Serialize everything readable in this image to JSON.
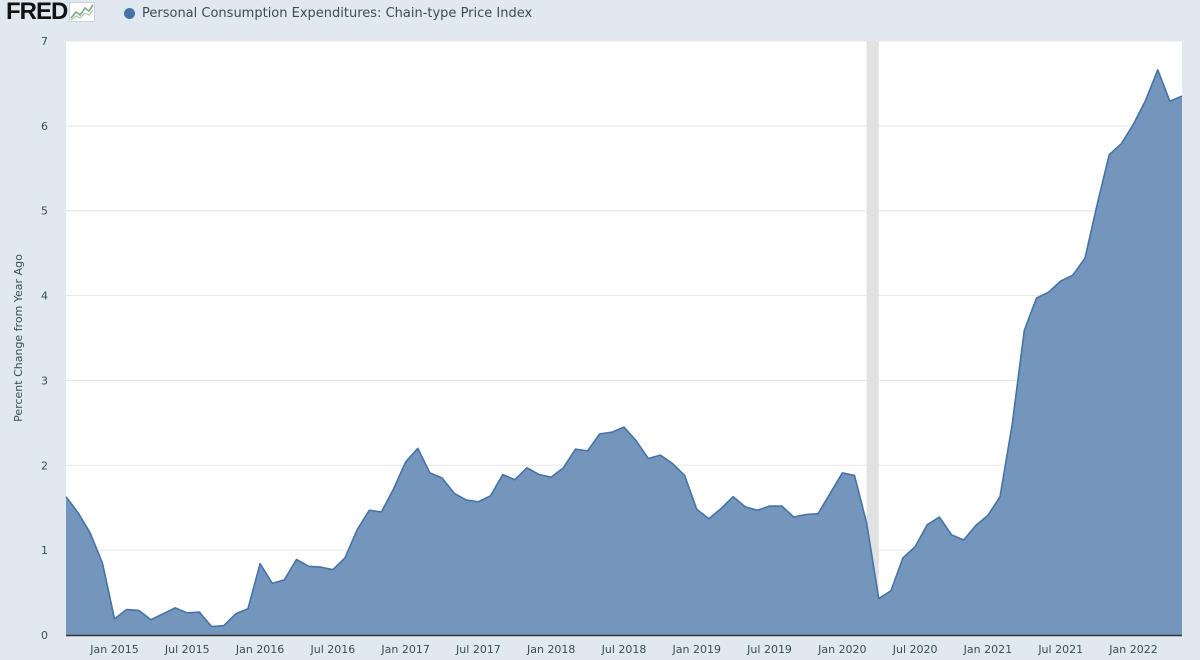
{
  "header": {
    "logo": "FRED",
    "logo_icon": "line-chart-icon"
  },
  "colors": {
    "series": "#4572a7",
    "fill": "#7496bd",
    "recession": "#e1e1e1",
    "grid": "#e6e6e6",
    "plot_bg": "#ffffff",
    "page_bg": "#e1e9f0"
  },
  "chart_data": {
    "type": "area",
    "ylabel": "Percent Change from Year Ago",
    "ylim": [
      0,
      7
    ],
    "y_ticks": [
      0,
      1,
      2,
      3,
      4,
      5,
      6,
      7
    ],
    "grid": true,
    "legend_position": "top-left",
    "x_tick_labels": [
      "Jan 2015",
      "Jul 2015",
      "Jan 2016",
      "Jul 2016",
      "Jan 2017",
      "Jul 2017",
      "Jan 2018",
      "Jul 2018",
      "Jan 2019",
      "Jul 2019",
      "Jan 2020",
      "Jul 2020",
      "Jan 2021",
      "Jul 2021",
      "Jan 2022"
    ],
    "x_tick_months": [
      0,
      6,
      12,
      18,
      24,
      30,
      36,
      42,
      48,
      54,
      60,
      66,
      72,
      78,
      84
    ],
    "x_start": "2014-09",
    "x_end": "2022-05",
    "recession": {
      "start": "2020-03",
      "end": "2020-04"
    },
    "series": [
      {
        "name": "Personal Consumption Expenditures: Chain-type Price Index",
        "x": [
          "2014-09",
          "2014-10",
          "2014-11",
          "2014-12",
          "2015-01",
          "2015-02",
          "2015-03",
          "2015-04",
          "2015-05",
          "2015-06",
          "2015-07",
          "2015-08",
          "2015-09",
          "2015-10",
          "2015-11",
          "2015-12",
          "2016-01",
          "2016-02",
          "2016-03",
          "2016-04",
          "2016-05",
          "2016-06",
          "2016-07",
          "2016-08",
          "2016-09",
          "2016-10",
          "2016-11",
          "2016-12",
          "2017-01",
          "2017-02",
          "2017-03",
          "2017-04",
          "2017-05",
          "2017-06",
          "2017-07",
          "2017-08",
          "2017-09",
          "2017-10",
          "2017-11",
          "2017-12",
          "2018-01",
          "2018-02",
          "2018-03",
          "2018-04",
          "2018-05",
          "2018-06",
          "2018-07",
          "2018-08",
          "2018-09",
          "2018-10",
          "2018-11",
          "2018-12",
          "2019-01",
          "2019-02",
          "2019-03",
          "2019-04",
          "2019-05",
          "2019-06",
          "2019-07",
          "2019-08",
          "2019-09",
          "2019-10",
          "2019-11",
          "2019-12",
          "2020-01",
          "2020-02",
          "2020-03",
          "2020-04",
          "2020-05",
          "2020-06",
          "2020-07",
          "2020-08",
          "2020-09",
          "2020-10",
          "2020-11",
          "2020-12",
          "2021-01",
          "2021-02",
          "2021-03",
          "2021-04",
          "2021-05",
          "2021-06",
          "2021-07",
          "2021-08",
          "2021-09",
          "2021-10",
          "2021-11",
          "2021-12",
          "2022-01",
          "2022-02",
          "2022-03",
          "2022-04",
          "2022-05"
        ],
        "values": [
          1.63,
          1.44,
          1.2,
          0.85,
          0.19,
          0.3,
          0.29,
          0.18,
          0.25,
          0.32,
          0.26,
          0.27,
          0.1,
          0.11,
          0.25,
          0.31,
          0.84,
          0.61,
          0.65,
          0.89,
          0.81,
          0.8,
          0.77,
          0.91,
          1.24,
          1.47,
          1.45,
          1.72,
          2.04,
          2.2,
          1.91,
          1.85,
          1.67,
          1.59,
          1.57,
          1.64,
          1.89,
          1.83,
          1.97,
          1.89,
          1.86,
          1.97,
          2.19,
          2.17,
          2.37,
          2.39,
          2.45,
          2.29,
          2.08,
          2.12,
          2.02,
          1.88,
          1.48,
          1.37,
          1.49,
          1.63,
          1.51,
          1.47,
          1.52,
          1.52,
          1.39,
          1.42,
          1.43,
          1.67,
          1.91,
          1.88,
          1.32,
          0.43,
          0.52,
          0.91,
          1.04,
          1.3,
          1.39,
          1.18,
          1.12,
          1.29,
          1.41,
          1.63,
          2.48,
          3.59,
          3.97,
          4.04,
          4.17,
          4.24,
          4.44,
          5.07,
          5.66,
          5.79,
          6.02,
          6.3,
          6.66,
          6.29,
          6.35
        ]
      }
    ]
  }
}
